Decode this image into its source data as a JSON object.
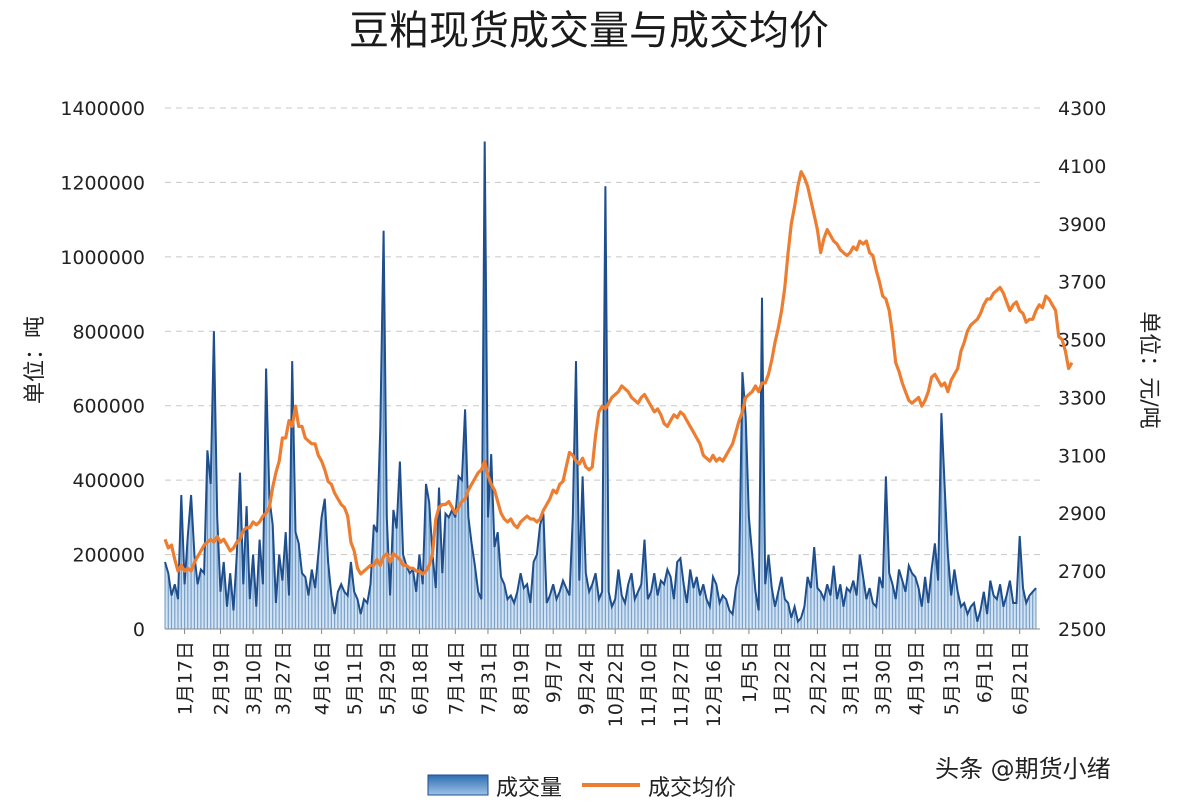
{
  "chart_data": {
    "type": "bar+line",
    "title": "豆粕现货成交量与成交均价",
    "y_left_label": "单位：吨",
    "y_right_label": "单位：元/吨",
    "y_left_ticks": [
      "0",
      "200000",
      "400000",
      "600000",
      "800000",
      "1000000",
      "1200000",
      "1400000"
    ],
    "y_right_ticks": [
      "2500",
      "2700",
      "2900",
      "3100",
      "3300",
      "3500",
      "3700",
      "3900",
      "4100",
      "4300"
    ],
    "ylim_left": [
      0,
      1400000
    ],
    "ylim_right": [
      2500,
      4300
    ],
    "grid": "horizontal dashed",
    "x_tick_labels": [
      "1月17日",
      "2月19日",
      "3月10日",
      "3月27日",
      "4月16日",
      "5月11日",
      "5月29日",
      "6月18日",
      "7月14日",
      "7月31日",
      "8月19日",
      "9月7日",
      "9月24日",
      "10月22日",
      "11月10日",
      "11月27日",
      "12月16日",
      "1月5日",
      "1月22日",
      "2月22日",
      "3月11日",
      "3月30日",
      "4月19日",
      "5月13日",
      "6月1日",
      "6月21日"
    ],
    "x_tick_index": [
      6,
      17,
      27,
      36,
      48,
      58,
      68,
      78,
      89,
      99,
      109,
      119,
      129,
      138,
      148,
      158,
      168,
      179,
      189,
      200,
      210,
      220,
      230,
      241,
      251,
      262
    ],
    "series": [
      {
        "name": "成交量",
        "kind": "bar-area",
        "values": [
          180000,
          150000,
          90000,
          120000,
          80000,
          360000,
          120000,
          250000,
          360000,
          200000,
          120000,
          160000,
          150000,
          480000,
          390000,
          800000,
          300000,
          100000,
          180000,
          60000,
          150000,
          50000,
          200000,
          420000,
          120000,
          330000,
          80000,
          200000,
          60000,
          240000,
          120000,
          700000,
          350000,
          280000,
          70000,
          200000,
          130000,
          260000,
          90000,
          720000,
          260000,
          230000,
          150000,
          140000,
          90000,
          160000,
          110000,
          200000,
          300000,
          350000,
          180000,
          90000,
          40000,
          100000,
          120000,
          100000,
          90000,
          180000,
          100000,
          80000,
          40000,
          80000,
          70000,
          120000,
          280000,
          260000,
          540000,
          1070000,
          300000,
          90000,
          320000,
          270000,
          450000,
          200000,
          170000,
          150000,
          160000,
          100000,
          200000,
          120000,
          390000,
          340000,
          200000,
          110000,
          380000,
          150000,
          310000,
          300000,
          320000,
          300000,
          410000,
          400000,
          590000,
          300000,
          230000,
          170000,
          100000,
          80000,
          1310000,
          300000,
          470000,
          220000,
          260000,
          140000,
          120000,
          80000,
          90000,
          70000,
          100000,
          150000,
          110000,
          120000,
          70000,
          180000,
          200000,
          280000,
          310000,
          70000,
          90000,
          120000,
          80000,
          100000,
          130000,
          110000,
          90000,
          300000,
          720000,
          130000,
          410000,
          150000,
          100000,
          120000,
          150000,
          80000,
          100000,
          1190000,
          100000,
          60000,
          80000,
          160000,
          90000,
          70000,
          120000,
          150000,
          80000,
          100000,
          120000,
          240000,
          80000,
          100000,
          150000,
          90000,
          130000,
          120000,
          160000,
          140000,
          80000,
          180000,
          190000,
          120000,
          70000,
          160000,
          110000,
          140000,
          90000,
          120000,
          80000,
          60000,
          140000,
          120000,
          70000,
          90000,
          80000,
          50000,
          40000,
          110000,
          150000,
          690000,
          570000,
          300000,
          200000,
          100000,
          50000,
          890000,
          120000,
          200000,
          110000,
          60000,
          100000,
          140000,
          80000,
          70000,
          30000,
          60000,
          20000,
          30000,
          60000,
          140000,
          110000,
          220000,
          110000,
          100000,
          80000,
          120000,
          90000,
          170000,
          80000,
          120000,
          60000,
          110000,
          100000,
          130000,
          90000,
          200000,
          140000,
          80000,
          110000,
          70000,
          60000,
          140000,
          110000,
          410000,
          150000,
          120000,
          80000,
          160000,
          130000,
          100000,
          170000,
          150000,
          140000,
          110000,
          60000,
          140000,
          70000,
          160000,
          230000,
          130000,
          580000,
          380000,
          200000,
          90000,
          160000,
          100000,
          60000,
          70000,
          40000,
          60000,
          70000,
          20000,
          50000,
          100000,
          40000,
          130000,
          90000,
          80000,
          120000,
          60000,
          90000,
          130000,
          70000,
          70000,
          250000,
          110000,
          70000,
          90000,
          100000,
          110000
        ]
      },
      {
        "name": "成交均价",
        "kind": "line",
        "values": [
          2810,
          2780,
          2790,
          2740,
          2700,
          2720,
          2700,
          2710,
          2700,
          2730,
          2750,
          2770,
          2790,
          2800,
          2810,
          2800,
          2820,
          2800,
          2810,
          2790,
          2770,
          2780,
          2800,
          2810,
          2840,
          2850,
          2850,
          2870,
          2860,
          2870,
          2890,
          2900,
          2920,
          2990,
          3040,
          3080,
          3160,
          3160,
          3220,
          3200,
          3270,
          3200,
          3200,
          3160,
          3150,
          3140,
          3140,
          3100,
          3080,
          3050,
          3010,
          3000,
          2970,
          2950,
          2930,
          2920,
          2890,
          2800,
          2770,
          2710,
          2690,
          2700,
          2710,
          2720,
          2720,
          2740,
          2720,
          2750,
          2760,
          2730,
          2760,
          2750,
          2740,
          2720,
          2720,
          2710,
          2710,
          2700,
          2700,
          2690,
          2700,
          2720,
          2760,
          2880,
          2920,
          2930,
          2930,
          2940,
          2920,
          2900,
          2920,
          2940,
          2950,
          2980,
          3000,
          3020,
          3040,
          3050,
          3080,
          3030,
          3000,
          2980,
          2940,
          2900,
          2880,
          2870,
          2880,
          2860,
          2850,
          2870,
          2880,
          2890,
          2880,
          2880,
          2870,
          2880,
          2910,
          2930,
          2950,
          2980,
          2970,
          3000,
          3010,
          3060,
          3110,
          3100,
          3080,
          3070,
          3090,
          3060,
          3050,
          3060,
          3170,
          3250,
          3270,
          3260,
          3280,
          3300,
          3310,
          3320,
          3340,
          3330,
          3320,
          3300,
          3290,
          3280,
          3300,
          3310,
          3290,
          3270,
          3250,
          3260,
          3240,
          3210,
          3200,
          3220,
          3240,
          3230,
          3250,
          3240,
          3220,
          3200,
          3180,
          3160,
          3140,
          3100,
          3090,
          3080,
          3100,
          3080,
          3090,
          3080,
          3100,
          3120,
          3140,
          3180,
          3220,
          3250,
          3300,
          3310,
          3320,
          3340,
          3320,
          3350,
          3350,
          3380,
          3430,
          3490,
          3540,
          3600,
          3680,
          3800,
          3900,
          3960,
          4030,
          4080,
          4060,
          4030,
          3980,
          3930,
          3880,
          3800,
          3850,
          3880,
          3860,
          3840,
          3830,
          3810,
          3800,
          3790,
          3800,
          3820,
          3810,
          3840,
          3830,
          3840,
          3800,
          3790,
          3740,
          3700,
          3650,
          3640,
          3600,
          3520,
          3420,
          3390,
          3350,
          3320,
          3290,
          3280,
          3290,
          3300,
          3270,
          3290,
          3320,
          3370,
          3380,
          3360,
          3340,
          3350,
          3320,
          3360,
          3380,
          3400,
          3460,
          3490,
          3530,
          3550,
          3560,
          3570,
          3590,
          3620,
          3640,
          3640,
          3660,
          3670,
          3680,
          3660,
          3630,
          3600,
          3620,
          3630,
          3600,
          3590,
          3560,
          3570,
          3570,
          3600,
          3620,
          3610,
          3650,
          3640,
          3620,
          3600,
          3510,
          3500,
          3460,
          3400,
          3420
        ]
      }
    ],
    "legend_position": "bottom"
  },
  "watermark": "头条 @期货小绪",
  "colors": {
    "bar_fill_top": "#5b9bd5",
    "bar_fill_bottom": "#dbe9f6",
    "bar_stroke": "#1f4e8c",
    "line": "#ed7d31"
  }
}
